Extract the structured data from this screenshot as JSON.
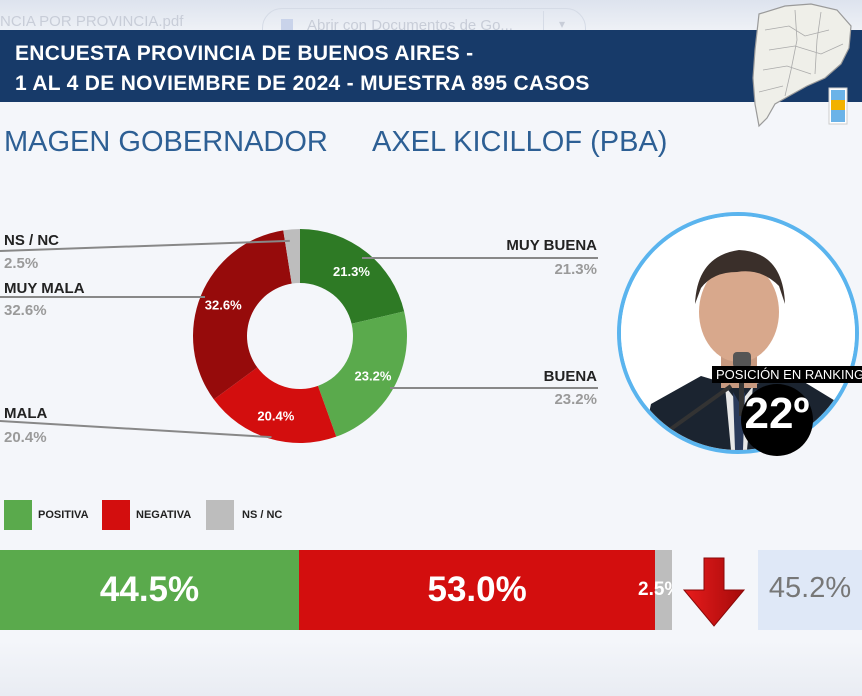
{
  "browser": {
    "file_name": "NCIA POR PROVINCIA.pdf",
    "open_with_label": "Abrir con Documentos de Go..."
  },
  "header": {
    "line1": "ENCUESTA PROVINCIA DE BUENOS AIRES -",
    "line2": "1 AL 4 DE NOVIEMBRE DE 2024 - MUESTRA 895 CASOS"
  },
  "title": {
    "left": "MAGEN GOBERNADOR",
    "right": "AXEL KICILLOF (PBA)"
  },
  "chart_data": [
    {
      "type": "pie",
      "categories": [
        "MUY BUENA",
        "BUENA",
        "MALA",
        "MUY MALA",
        "NS / NC"
      ],
      "values": [
        21.3,
        23.2,
        20.4,
        32.6,
        2.5
      ],
      "value_labels": [
        "21.3%",
        "23.2%",
        "20.4%",
        "32.6%",
        "2.5%"
      ],
      "colors": [
        "#2e7a25",
        "#5aaa4c",
        "#d30e0e",
        "#960b0b",
        "#bdbdbd"
      ],
      "donut": true
    },
    {
      "type": "bar",
      "orientation": "horizontal-stacked",
      "categories": [
        "POSITIVA",
        "NEGATIVA",
        "NS / NC"
      ],
      "values": [
        44.5,
        53.0,
        2.5
      ],
      "value_labels": [
        "44.5%",
        "53.0%",
        "2.5%"
      ],
      "colors": [
        "#5aaa4c",
        "#d30e0e",
        "#bdbdbd"
      ],
      "legend": "top-left"
    }
  ],
  "ranking": {
    "label": "POSICIÓN EN RANKING",
    "value": "22º"
  },
  "previous": {
    "value": "45.2%",
    "trend": "down-arrow-icon"
  },
  "colors": {
    "banner": "#173a69",
    "title": "#2d5f94",
    "ring": "#5ab4ee"
  }
}
